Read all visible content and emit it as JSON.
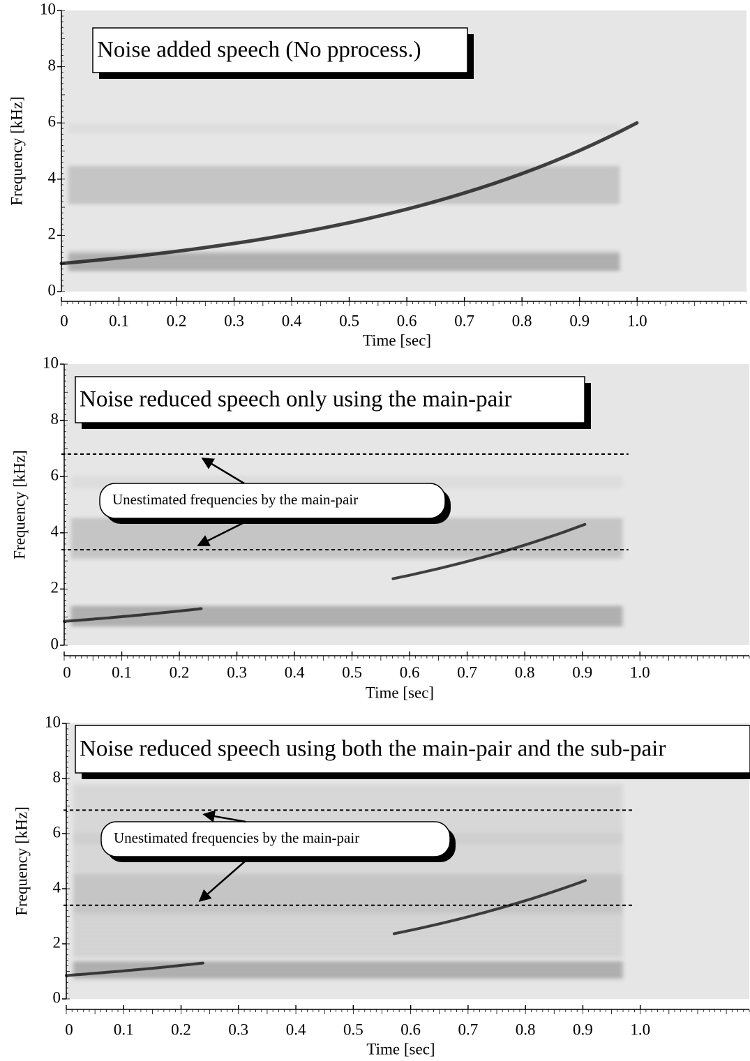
{
  "chart_data": [
    {
      "type": "spectrogram",
      "title": "Noise added speech (No pprocess.)",
      "xlabel": "Time [sec]",
      "ylabel": "Frequency [kHz]",
      "xlim": [
        0,
        1.19
      ],
      "ylim": [
        0,
        10
      ],
      "xticks": [
        0,
        0.1,
        0.2,
        0.3,
        0.4,
        0.5,
        0.6,
        0.7,
        0.8,
        0.9,
        {
          "value": 1,
          "label": "1.0"
        }
      ],
      "yticks": [
        0,
        2,
        4,
        6,
        8,
        10
      ]
    },
    {
      "type": "spectrogram",
      "title": "Noise reduced speech only using the main-pair",
      "xlabel": "Time [sec]",
      "ylabel": "Frequency [kHz]",
      "xlim": [
        0,
        1.19
      ],
      "ylim": [
        0,
        10
      ],
      "xticks": [
        0,
        0.1,
        0.2,
        0.3,
        0.4,
        0.5,
        0.6,
        0.7,
        0.8,
        0.9,
        {
          "value": 1,
          "label": "1.0"
        }
      ],
      "yticks": [
        0,
        2,
        4,
        6,
        8,
        10
      ],
      "hlines": [
        6.8,
        3.4
      ],
      "annotation": "Unestimated frequencies by the main-pair"
    },
    {
      "type": "spectrogram",
      "title": "Noise reduced speech using both the main-pair and the sub-pair",
      "xlabel": "Time [sec]",
      "ylabel": "Frequency [kHz]",
      "xlim": [
        0,
        1.19
      ],
      "ylim": [
        0,
        10
      ],
      "xticks": [
        0,
        0.1,
        0.2,
        0.3,
        0.4,
        0.5,
        0.6,
        0.7,
        0.8,
        0.9,
        {
          "value": 1,
          "label": "1.0"
        }
      ],
      "yticks": [
        0,
        2,
        4,
        6,
        8,
        10
      ],
      "hlines": [
        6.85,
        3.4
      ],
      "annotation": "Unestimated frequencies by the main-pair"
    }
  ]
}
